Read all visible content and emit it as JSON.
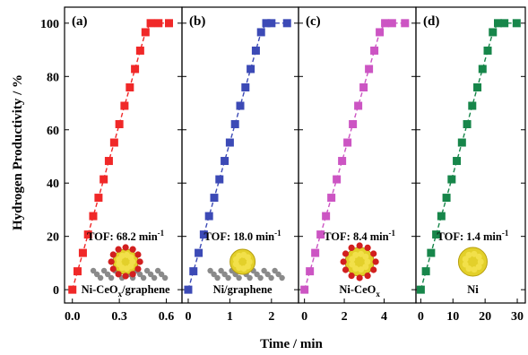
{
  "figure": {
    "ylabel": "Hydrogen Productivity / %",
    "xlabel": "Time / min"
  },
  "chart_data": [
    {
      "type": "line",
      "panel_label": "(a)",
      "name": "Ni-CeO",
      "name_sub": "x",
      "name_tail": "/graphene",
      "tof_text": "TOF: 68.2 min",
      "tof_sup": "-1",
      "color": "#f02828",
      "xlim": [
        -0.05,
        0.7
      ],
      "xticks": [
        0.0,
        0.3,
        0.6
      ],
      "xtick_labels": [
        "0.0",
        "0.3",
        "0.6"
      ],
      "ylim": [
        -5,
        106
      ],
      "yticks": [
        0,
        20,
        40,
        60,
        80,
        100
      ],
      "ytick_labels": [
        "0",
        "20",
        "40",
        "60",
        "80",
        "100"
      ],
      "x": [
        0.0,
        0.033,
        0.067,
        0.1,
        0.133,
        0.167,
        0.2,
        0.233,
        0.267,
        0.3,
        0.333,
        0.367,
        0.4,
        0.433,
        0.467,
        0.5,
        0.55,
        0.617
      ],
      "y": [
        0,
        6.9,
        13.8,
        20.7,
        27.6,
        34.5,
        41.4,
        48.3,
        55.2,
        62.1,
        69,
        75.9,
        82.8,
        89.7,
        96.6,
        100,
        100,
        100
      ]
    },
    {
      "type": "line",
      "panel_label": "(b)",
      "name": "Ni/graphene",
      "tof_text": "TOF: 18.0 min",
      "tof_sup": "-1",
      "color": "#3c4ab6",
      "xlim": [
        -0.15,
        2.65
      ],
      "xticks": [
        0,
        1,
        2
      ],
      "xtick_labels": [
        "0",
        "1",
        "2"
      ],
      "ylim": [
        -5,
        106
      ],
      "yticks": [
        0,
        20,
        40,
        60,
        80,
        100
      ],
      "ytick_labels": [
        "0",
        "20",
        "40",
        "60",
        "80",
        "100"
      ],
      "x": [
        0.0,
        0.125,
        0.25,
        0.375,
        0.5,
        0.625,
        0.75,
        0.875,
        1.0,
        1.125,
        1.25,
        1.375,
        1.5,
        1.625,
        1.75,
        1.875,
        2.0,
        2.375
      ],
      "y": [
        0,
        6.9,
        13.8,
        20.7,
        27.6,
        34.5,
        41.4,
        48.3,
        55.2,
        62.1,
        69,
        75.9,
        82.8,
        89.7,
        96.6,
        100,
        100,
        100
      ]
    },
    {
      "type": "line",
      "panel_label": "(c)",
      "name": "Ni-CeO",
      "name_sub": "x",
      "name_tail": "",
      "tof_text": "TOF: 8.4 min",
      "tof_sup": "-1",
      "color": "#cc55c3",
      "xlim": [
        -0.3,
        5.6
      ],
      "xticks": [
        0,
        2,
        4
      ],
      "xtick_labels": [
        "0",
        "2",
        "4"
      ],
      "ylim": [
        -5,
        106
      ],
      "yticks": [
        0,
        20,
        40,
        60,
        80,
        100
      ],
      "ytick_labels": [
        "0",
        "20",
        "40",
        "60",
        "80",
        "100"
      ],
      "x": [
        0.0,
        0.27,
        0.54,
        0.81,
        1.08,
        1.35,
        1.62,
        1.89,
        2.16,
        2.43,
        2.7,
        2.97,
        3.24,
        3.51,
        3.78,
        4.05,
        4.4,
        5.05
      ],
      "y": [
        0,
        6.9,
        13.8,
        20.7,
        27.6,
        34.5,
        41.4,
        48.3,
        55.2,
        62.1,
        69,
        75.9,
        82.8,
        89.7,
        96.6,
        100,
        100,
        100
      ]
    },
    {
      "type": "line",
      "panel_label": "(d)",
      "name": "Ni",
      "tof_text": "TOF: 1.4 min",
      "tof_sup": "-1",
      "color": "#17864a",
      "xlim": [
        -1.5,
        32.5
      ],
      "xticks": [
        0,
        10,
        20,
        30
      ],
      "xtick_labels": [
        "0",
        "10",
        "20",
        "30"
      ],
      "ylim": [
        -5,
        106
      ],
      "yticks": [
        0,
        20,
        40,
        60,
        80,
        100
      ],
      "ytick_labels": [
        "0",
        "20",
        "40",
        "60",
        "80",
        "100"
      ],
      "x": [
        0,
        1.6,
        3.2,
        4.8,
        6.4,
        8.0,
        9.6,
        11.2,
        12.8,
        14.4,
        16.0,
        17.6,
        19.2,
        20.8,
        22.4,
        24.0,
        26.0,
        29.8
      ],
      "y": [
        0,
        6.9,
        13.8,
        20.7,
        27.6,
        34.5,
        41.4,
        48.3,
        55.2,
        62.1,
        69,
        75.9,
        82.8,
        89.7,
        96.6,
        100,
        100,
        100
      ]
    }
  ]
}
